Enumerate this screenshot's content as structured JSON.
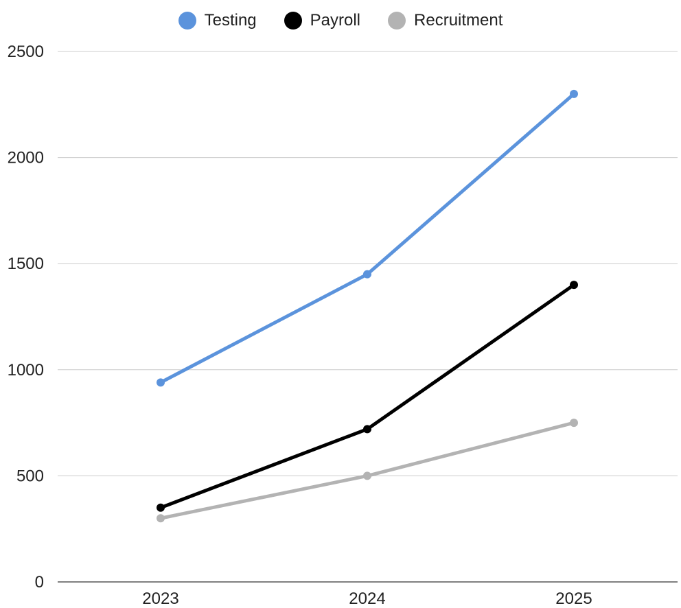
{
  "chart_data": {
    "type": "line",
    "title": "",
    "xlabel": "",
    "ylabel": "",
    "categories": [
      "2023",
      "2024",
      "2025"
    ],
    "ylim": [
      0,
      2500
    ],
    "yticks": [
      "0",
      "500",
      "1000",
      "1500",
      "2000",
      "2500"
    ],
    "grid": true,
    "legend_position": "top",
    "series": [
      {
        "name": "Testing",
        "color": "#5b93dc",
        "values": [
          940,
          1450,
          2300
        ]
      },
      {
        "name": "Payroll",
        "color": "#000000",
        "values": [
          350,
          720,
          1400
        ]
      },
      {
        "name": "Recruitment",
        "color": "#b3b3b3",
        "values": [
          300,
          500,
          750
        ]
      }
    ]
  }
}
